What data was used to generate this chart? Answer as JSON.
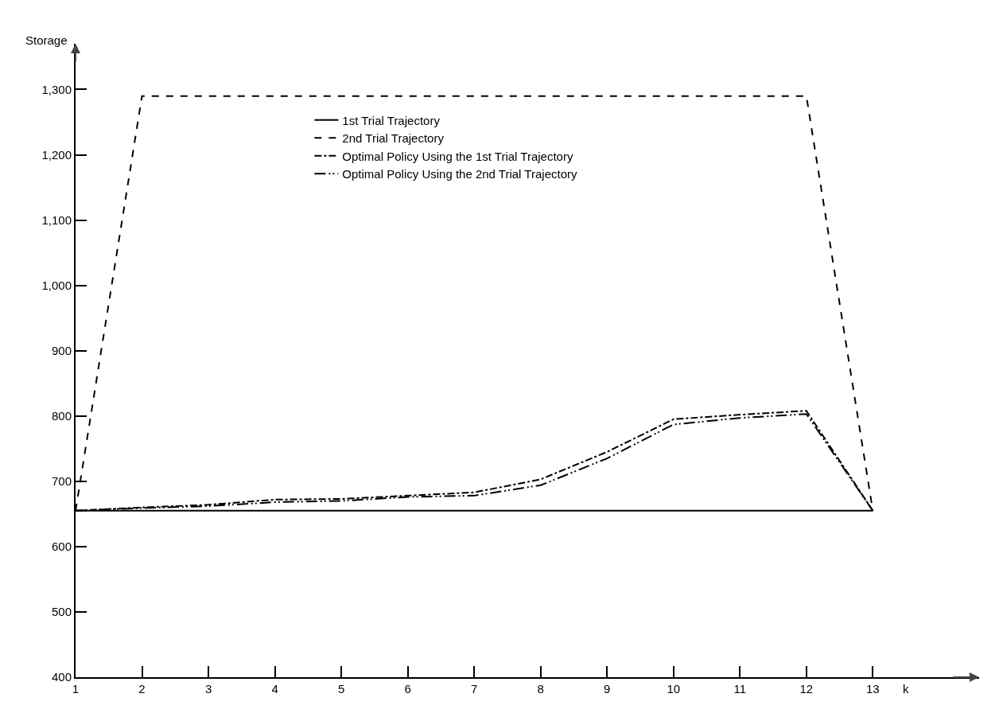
{
  "chart_data": {
    "type": "line",
    "xlabel": "k",
    "ylabel": "Storage",
    "x": [
      1,
      2,
      3,
      4,
      5,
      6,
      7,
      8,
      9,
      10,
      11,
      12,
      13
    ],
    "series": [
      {
        "name": "1st Trial Trajectory",
        "color": "#000000",
        "line_style": "solid",
        "values": [
          655,
          655,
          655,
          655,
          655,
          655,
          655,
          655,
          655,
          655,
          655,
          655,
          655
        ]
      },
      {
        "name": "2nd Trial Trajectory",
        "color": "#000000",
        "line_style": "dashed",
        "values": [
          655,
          1290,
          1290,
          1290,
          1290,
          1290,
          1290,
          1290,
          1290,
          1290,
          1290,
          1290,
          655
        ]
      },
      {
        "name": "Optimal Policy Using the 1st Trial Trajectory",
        "color": "#000000",
        "line_style": "dashdot",
        "values": [
          655,
          660,
          664,
          672,
          673,
          678,
          683,
          703,
          745,
          795,
          802,
          808,
          655
        ]
      },
      {
        "name": "Optimal Policy Using the 2nd Trial Trajectory",
        "color": "#000000",
        "line_style": "dashdotdot",
        "values": [
          655,
          659,
          662,
          668,
          670,
          676,
          678,
          694,
          735,
          787,
          797,
          803,
          655
        ]
      }
    ],
    "xlim": [
      1,
      14.6
    ],
    "ylim": [
      400,
      1370
    ],
    "xticks": [
      1,
      2,
      3,
      4,
      5,
      6,
      7,
      8,
      9,
      10,
      11,
      12,
      13
    ],
    "yticks": [
      400,
      500,
      600,
      700,
      800,
      900,
      {
        "value": 1000,
        "label": "1,000"
      },
      {
        "value": 1100,
        "label": "1,100"
      },
      {
        "value": 1200,
        "label": "1,200"
      },
      {
        "value": 1300,
        "label": "1,300"
      }
    ],
    "grid": false,
    "legend": "top",
    "marker": "none"
  }
}
